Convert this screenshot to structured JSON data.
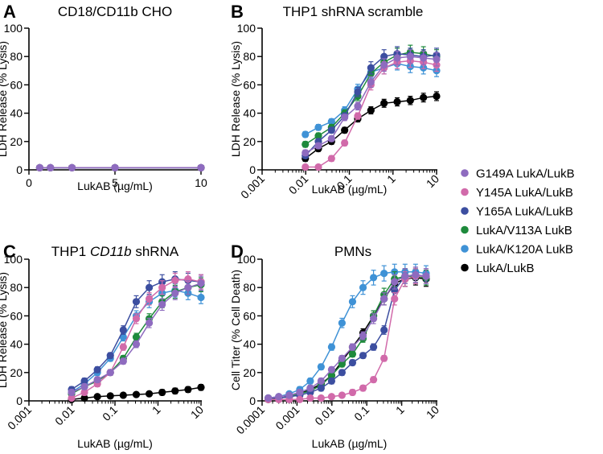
{
  "chart_data": [
    {
      "type": "scatter",
      "letter": "A",
      "title": "CD18/CD11b CHO",
      "xlabel": "LukAB (µg/mL)",
      "ylabel": "LDH Release (% Lysis)",
      "xscale": "linear",
      "xlim": [
        0,
        10
      ],
      "ylim": [
        0,
        100
      ],
      "xticks": [
        0,
        5,
        10
      ],
      "xtick_labels": [
        "0",
        "5",
        "10"
      ],
      "yticks": [
        0,
        20,
        40,
        60,
        80,
        100
      ],
      "ytick_labels": [
        "0",
        "20",
        "40",
        "60",
        "80",
        "100"
      ],
      "x": [
        0.625,
        1.25,
        2.5,
        5,
        10
      ],
      "series": [
        {
          "name": "G149A LukA/LukB",
          "values": [
            1.5,
            1.5,
            1.5,
            1.5,
            1.5
          ]
        },
        {
          "name": "Y145A LukA/LukB",
          "values": [
            1.5,
            1.5,
            1.5,
            1.5,
            1.5
          ]
        },
        {
          "name": "Y165A LukA/LukB",
          "values": [
            1.5,
            1.5,
            1.5,
            1.5,
            1.5
          ]
        },
        {
          "name": "LukA/V113A LukB",
          "values": [
            1.5,
            1.5,
            1.5,
            1.5,
            1.5
          ]
        },
        {
          "name": "LukA/K120A LukB",
          "values": [
            1.5,
            1.5,
            1.5,
            1.5,
            1.5
          ]
        },
        {
          "name": "LukA/LukB",
          "values": [
            1.5,
            1.5,
            1.5,
            1.5,
            1.5
          ]
        }
      ]
    },
    {
      "type": "scatter",
      "letter": "B",
      "title": "THP1 shRNA scramble",
      "xlabel": "LukAB (µg/mL)",
      "ylabel": "LDH Release (% Lysis)",
      "xscale": "log",
      "xlim": [
        0.001,
        10
      ],
      "ylim": [
        0,
        100
      ],
      "xticks": [
        0.001,
        0.01,
        0.1,
        1,
        10
      ],
      "xtick_labels": [
        "0.001",
        "0.01",
        "0.1",
        "1",
        "10"
      ],
      "yticks": [
        0,
        20,
        40,
        60,
        80,
        100
      ],
      "ytick_labels": [
        "0",
        "20",
        "40",
        "60",
        "80",
        "100"
      ],
      "x": [
        0.0098,
        0.0195,
        0.039,
        0.078,
        0.156,
        0.3125,
        0.625,
        1.25,
        2.5,
        5,
        10
      ],
      "series": [
        {
          "name": "G149A LukA/LukB",
          "values": [
            12,
            17,
            22,
            37,
            45,
            62,
            74,
            79,
            80,
            79,
            78
          ]
        },
        {
          "name": "Y145A LukA/LukB",
          "values": [
            2,
            2,
            8,
            19,
            38,
            60,
            72,
            76,
            77,
            76,
            74
          ]
        },
        {
          "name": "Y165A LukA/LukB",
          "values": [
            10,
            20,
            28,
            38,
            55,
            72,
            80,
            82,
            81,
            80,
            81
          ]
        },
        {
          "name": "LukA/V113A LukB",
          "values": [
            18,
            24,
            30,
            40,
            52,
            68,
            76,
            81,
            83,
            82,
            80
          ]
        },
        {
          "name": "LukA/K120A LukB",
          "values": [
            25,
            30,
            34,
            42,
            57,
            69,
            72,
            75,
            73,
            72,
            70
          ]
        },
        {
          "name": "LukA/LukB",
          "values": [
            8,
            15,
            20,
            28,
            36,
            42,
            47,
            48,
            49,
            51,
            52
          ]
        }
      ]
    },
    {
      "type": "scatter",
      "letter": "C",
      "title_prefix": "THP1 ",
      "title_italic": "CD11b",
      "title_suffix": " shRNA",
      "xlabel": "LukAB (µg/mL)",
      "ylabel": "LDH Release (% Lysis)",
      "xscale": "log",
      "xlim": [
        0.001,
        10
      ],
      "ylim": [
        0,
        100
      ],
      "xticks": [
        0.001,
        0.01,
        0.1,
        1,
        10
      ],
      "xtick_labels": [
        "0.001",
        "0.01",
        "0.1",
        "1",
        "10"
      ],
      "yticks": [
        0,
        20,
        40,
        60,
        80,
        100
      ],
      "ytick_labels": [
        "0",
        "20",
        "40",
        "60",
        "80",
        "100"
      ],
      "x": [
        0.0098,
        0.0195,
        0.039,
        0.078,
        0.156,
        0.3125,
        0.625,
        1.25,
        2.5,
        5,
        10
      ],
      "series": [
        {
          "name": "G149A LukA/LukB",
          "values": [
            6,
            10,
            15,
            20,
            28,
            40,
            55,
            68,
            76,
            80,
            83
          ]
        },
        {
          "name": "Y145A LukA/LukB",
          "values": [
            2,
            6,
            12,
            20,
            38,
            58,
            72,
            80,
            85,
            86,
            84
          ]
        },
        {
          "name": "Y165A LukA/LukB",
          "values": [
            8,
            14,
            22,
            32,
            50,
            70,
            80,
            84,
            86,
            85,
            84
          ]
        },
        {
          "name": "LukA/V113A LukB",
          "values": [
            5,
            10,
            14,
            20,
            30,
            45,
            58,
            70,
            77,
            80,
            82
          ]
        },
        {
          "name": "LukA/K120A LukB",
          "values": [
            6,
            12,
            20,
            30,
            45,
            60,
            70,
            76,
            78,
            76,
            73
          ]
        },
        {
          "name": "LukA/LukB",
          "values": [
            1,
            2,
            3,
            3.5,
            4,
            4.5,
            5,
            6,
            7,
            8,
            9.5
          ]
        }
      ]
    },
    {
      "type": "scatter",
      "letter": "D",
      "title": "PMNs",
      "xlabel": "LukAB (µg/mL)",
      "ylabel": "Cell Titer (% Cell Death)",
      "xscale": "log",
      "xlim": [
        0.0001,
        10
      ],
      "ylim": [
        0,
        100
      ],
      "xticks": [
        0.0001,
        0.001,
        0.01,
        0.1,
        1,
        10
      ],
      "xtick_labels": [
        "0.0001",
        "0.001",
        "0.01",
        "0.1",
        "1",
        "10"
      ],
      "yticks": [
        0,
        20,
        40,
        60,
        80,
        100
      ],
      "ytick_labels": [
        "0",
        "20",
        "40",
        "60",
        "80",
        "100"
      ],
      "x": [
        0.00015,
        0.0003,
        0.0006,
        0.0012,
        0.0024,
        0.0049,
        0.0098,
        0.0195,
        0.039,
        0.078,
        0.156,
        0.3125,
        0.625,
        1.25,
        2.5,
        5
      ],
      "series": [
        {
          "name": "G149A LukA/LukB",
          "values": [
            2,
            3,
            4,
            6,
            9,
            14,
            22,
            30,
            38,
            46,
            58,
            72,
            84,
            88,
            89,
            88
          ]
        },
        {
          "name": "Y145A LukA/LukB",
          "values": [
            1,
            1,
            1,
            1,
            2,
            2,
            3,
            4,
            6,
            9,
            15,
            30,
            72,
            86,
            88,
            88
          ]
        },
        {
          "name": "Y165A LukA/LukB",
          "values": [
            2,
            2,
            3,
            4,
            6,
            9,
            14,
            20,
            27,
            32,
            38,
            50,
            78,
            88,
            89,
            88
          ]
        },
        {
          "name": "LukA/V113A LukB",
          "values": [
            2,
            2,
            3,
            5,
            7,
            11,
            18,
            26,
            33,
            44,
            60,
            75,
            86,
            88,
            88,
            87
          ]
        },
        {
          "name": "LukA/K120A LukB",
          "values": [
            2,
            3,
            5,
            8,
            14,
            24,
            38,
            55,
            70,
            80,
            87,
            90,
            91,
            91,
            91,
            90
          ]
        },
        {
          "name": "LukA/LukB",
          "values": [
            1,
            2,
            3,
            5,
            8,
            12,
            18,
            28,
            38,
            48,
            60,
            72,
            83,
            86,
            87,
            86
          ]
        }
      ]
    }
  ],
  "legend": {
    "position": "right",
    "items": [
      {
        "name": "G149A LukA/LukB",
        "color": "#8e6bbf"
      },
      {
        "name": "Y145A LukA/LukB",
        "color": "#d16aaa"
      },
      {
        "name": "Y165A LukA/LukB",
        "color": "#3c4ea0"
      },
      {
        "name": "LukA/V113A LukB",
        "color": "#1e8a3c"
      },
      {
        "name": "LukA/K120A LukB",
        "color": "#3f92d6"
      },
      {
        "name": "LukA/LukB",
        "color": "#000000"
      }
    ]
  }
}
